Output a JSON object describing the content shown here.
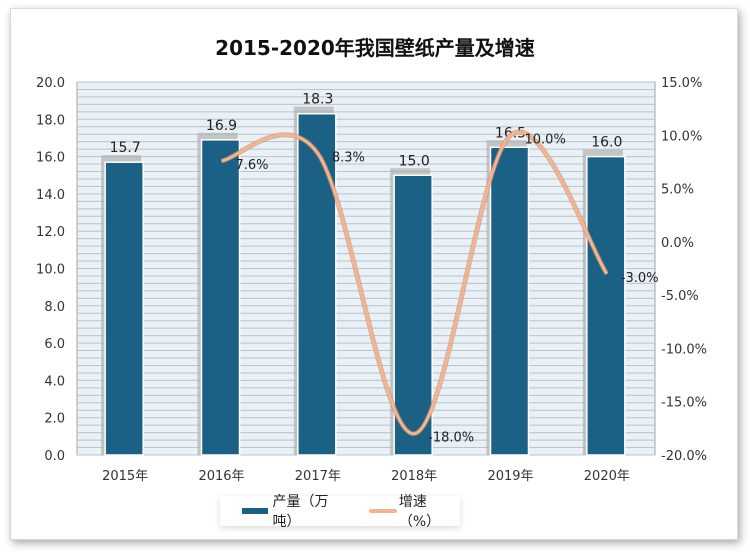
{
  "chart_data": {
    "type": "bar+line",
    "title": "2015-2020年我国壁纸产量及增速",
    "categories": [
      "2015年",
      "2016年",
      "2017年",
      "2018年",
      "2019年",
      "2020年"
    ],
    "series": [
      {
        "name": "产量（万吨）",
        "type": "bar",
        "axis": "left",
        "values": [
          15.7,
          16.9,
          18.3,
          15.0,
          16.5,
          16.0
        ],
        "labels": [
          "15.7",
          "16.9",
          "18.3",
          "15.0",
          "16.5",
          "16.0"
        ],
        "color": "#1a6185"
      },
      {
        "name": "增速（%）",
        "type": "line",
        "axis": "right",
        "values": [
          null,
          7.6,
          8.3,
          -18.0,
          10.0,
          -3.0
        ],
        "labels": [
          "",
          "7.6%",
          "8.3%",
          "-18.0%",
          "10.0%",
          "-3.0%"
        ],
        "color": "#f4b490"
      }
    ],
    "left_axis": {
      "range": [
        0,
        20
      ],
      "ticks": [
        "0.0",
        "2.0",
        "4.0",
        "6.0",
        "8.0",
        "10.0",
        "12.0",
        "14.0",
        "16.0",
        "18.0",
        "20.0"
      ]
    },
    "right_axis": {
      "range": [
        -20,
        15
      ],
      "ticks": [
        "-20.0%",
        "-15.0%",
        "-10.0%",
        "-5.0%",
        "0.0%",
        "5.0%",
        "10.0%",
        "15.0%"
      ]
    },
    "grid": true,
    "legend": "bottom"
  }
}
